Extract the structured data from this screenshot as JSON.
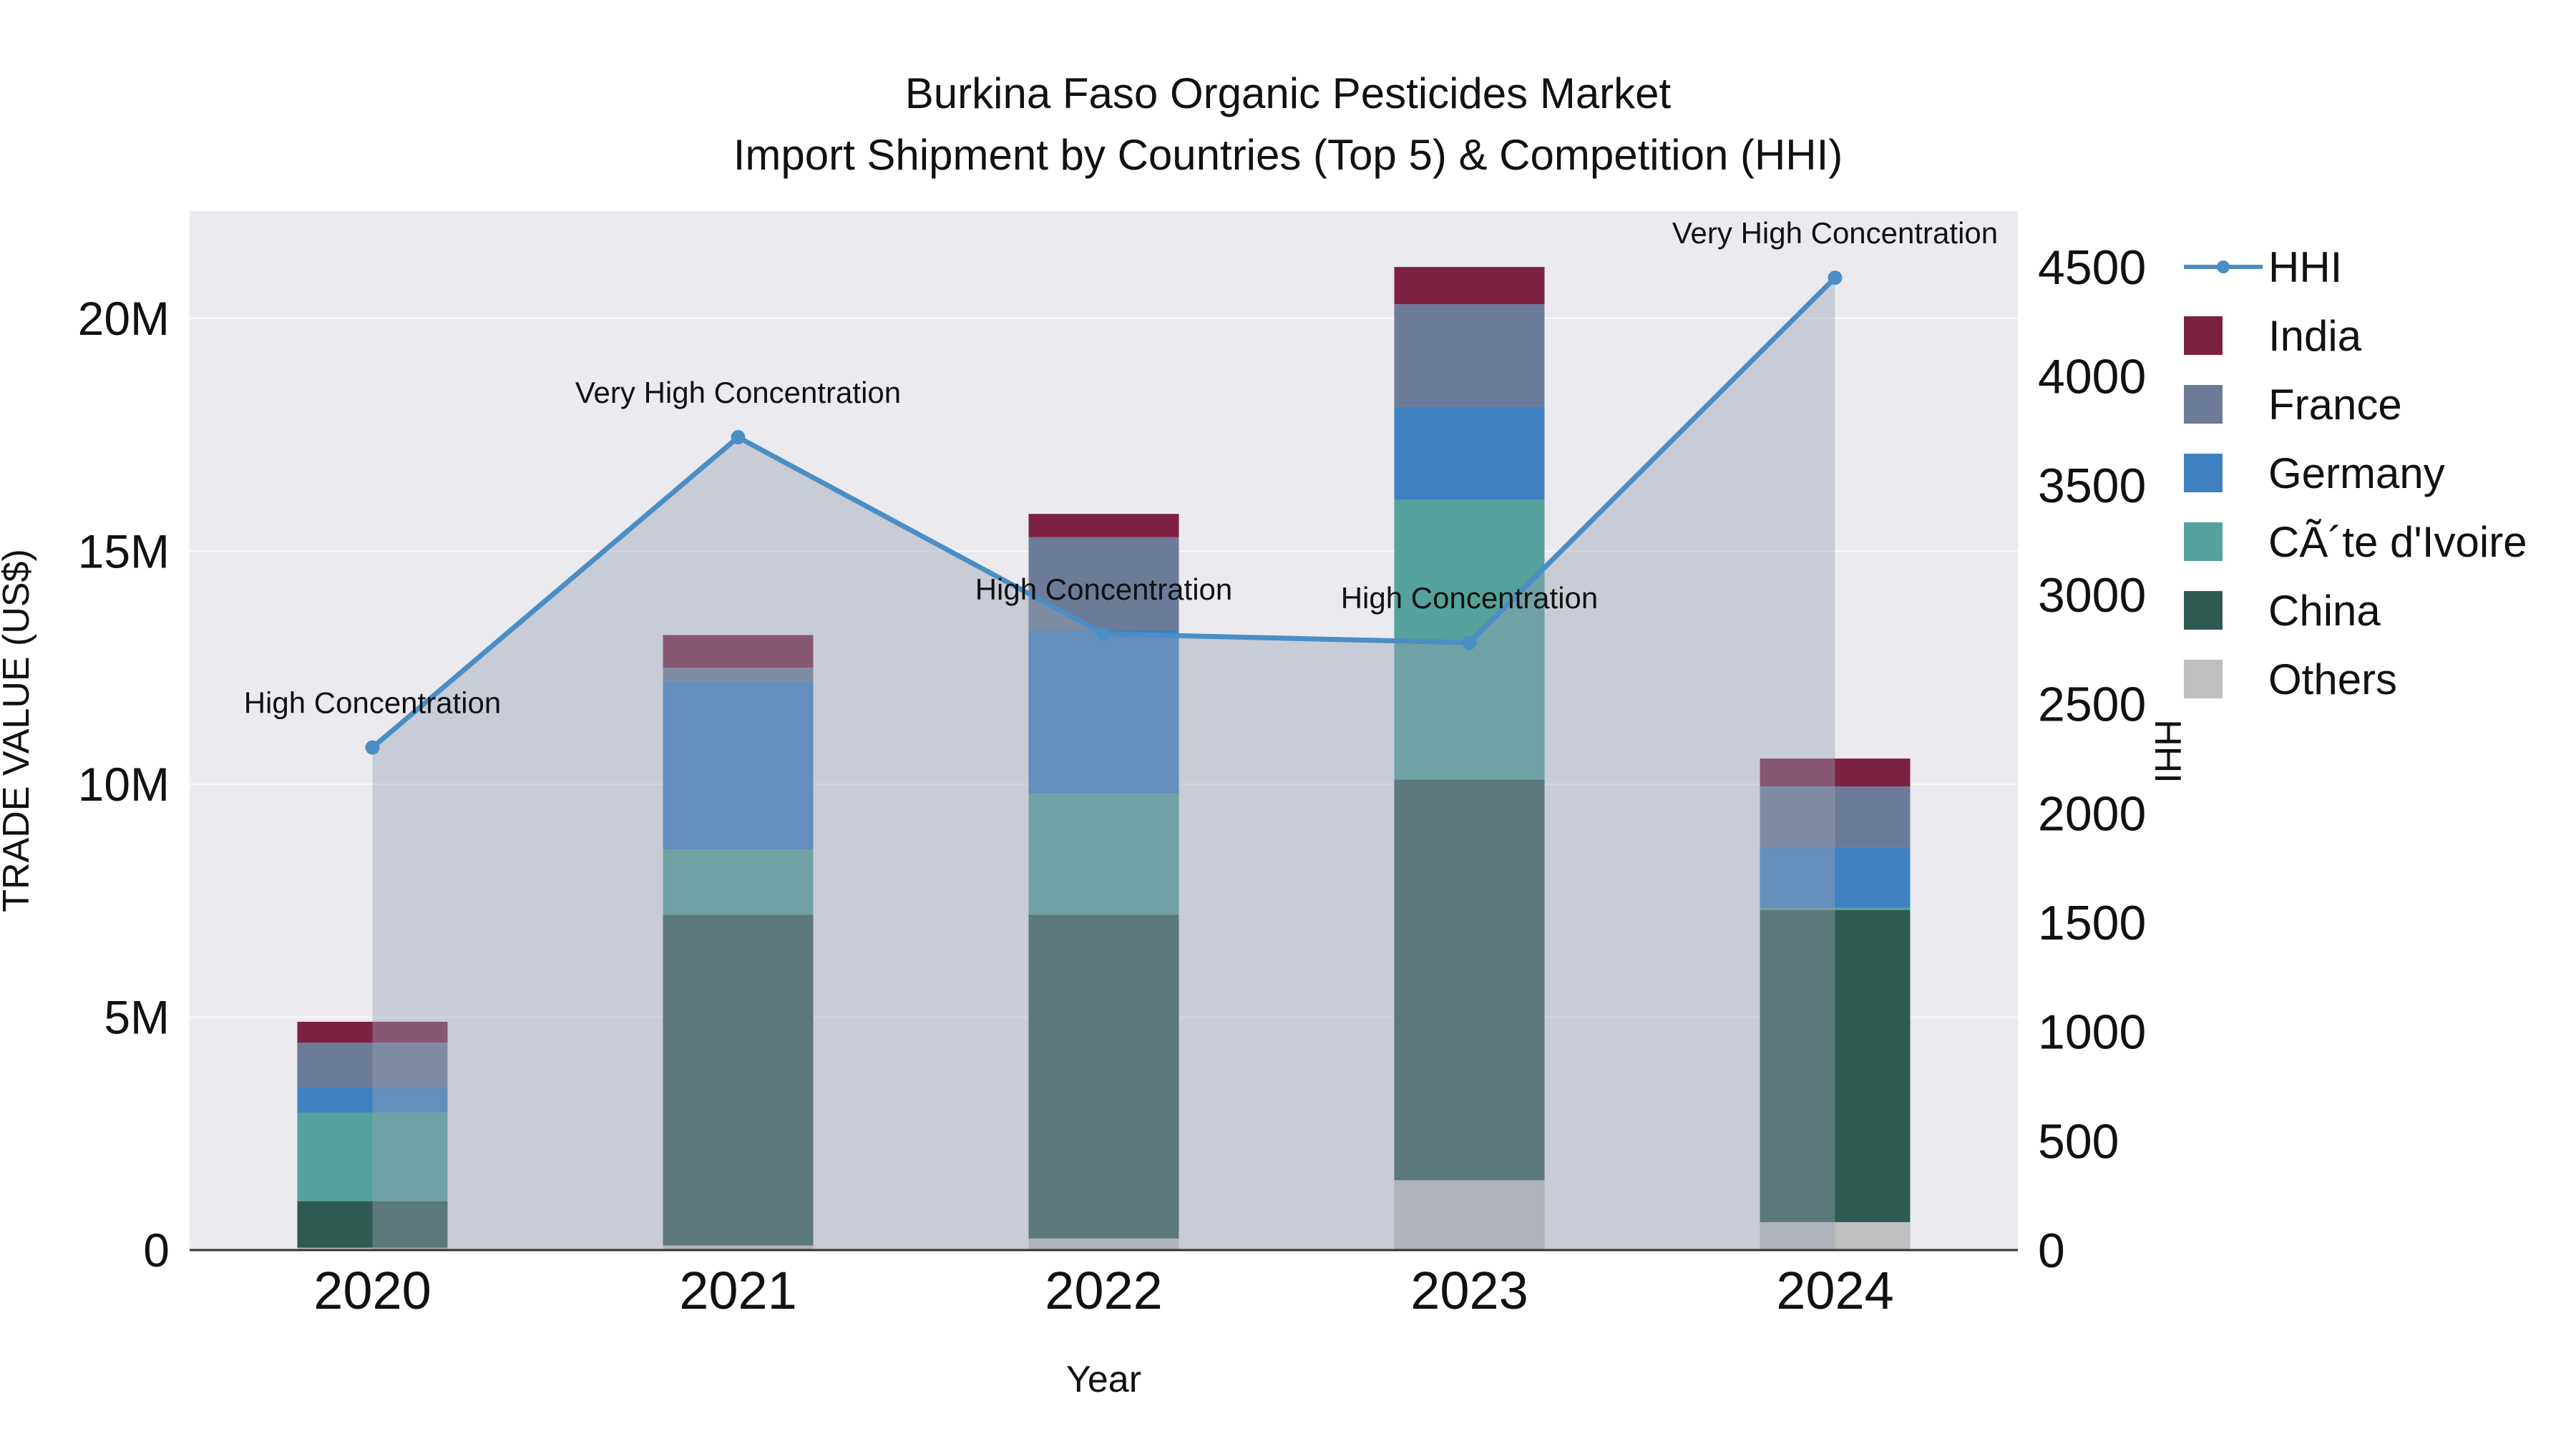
{
  "title": {
    "line1": "Burkina Faso Organic Pesticides Market",
    "line2": "Import Shipment by Countries (Top 5) & Competition (HHI)"
  },
  "chart_data": {
    "type": "combo-stacked-bar-line",
    "categories": [
      "2020",
      "2021",
      "2022",
      "2023",
      "2024"
    ],
    "xlabel": "Year",
    "ylabel_left": "TRADE VALUE (US$)",
    "ylabel_right": "HHI",
    "values_unit": "USD millions",
    "y_left_max_musd": 22.3,
    "y_right_max": 4755,
    "y_left_ticks": {
      "values": [
        0,
        5,
        10,
        15,
        20
      ],
      "labels": [
        "0",
        "5M",
        "10M",
        "15M",
        "20M"
      ]
    },
    "y_right_ticks": [
      0,
      500,
      1000,
      1500,
      2000,
      2500,
      3000,
      3500,
      4000,
      4500
    ],
    "colors": {
      "plot_bg": "#eaeaef",
      "grid": "#fafafa",
      "axis_line": "#333333",
      "text": "#111111"
    },
    "series": [
      {
        "name": "Others",
        "color": "#bfbfbf",
        "values_musd": [
          0.05,
          0.1,
          0.25,
          1.5,
          0.6
        ]
      },
      {
        "name": "China",
        "color": "#2f5a52",
        "values_musd": [
          1.0,
          7.1,
          6.95,
          8.6,
          6.7
        ]
      },
      {
        "name": "CÃ´te d'Ivoire",
        "color": "#54a29b",
        "values_musd": [
          1.9,
          1.4,
          2.6,
          6.0,
          0.05
        ]
      },
      {
        "name": "Germany",
        "color": "#3f80c1",
        "values_musd": [
          0.55,
          3.6,
          3.5,
          2.0,
          1.3
        ]
      },
      {
        "name": "France",
        "color": "#6c7c98",
        "values_musd": [
          0.95,
          0.3,
          2.0,
          2.2,
          1.3
        ]
      },
      {
        "name": "India",
        "color": "#7c2142",
        "values_musd": [
          0.45,
          0.7,
          0.5,
          0.8,
          0.6
        ]
      }
    ],
    "line_series": {
      "name": "HHI",
      "color": "#4b8ec5",
      "area_fill": "rgba(152,162,178,0.42)",
      "values": [
        2300,
        3720,
        2820,
        2780,
        4450
      ]
    },
    "annotations": [
      {
        "category_index": 0,
        "text": "High Concentration"
      },
      {
        "category_index": 1,
        "text": "Very High Concentration"
      },
      {
        "category_index": 2,
        "text": "High Concentration"
      },
      {
        "category_index": 3,
        "text": "High Concentration"
      },
      {
        "category_index": 4,
        "text": "Very High Concentration"
      }
    ]
  },
  "legend": {
    "items": [
      {
        "label": "HHI",
        "type": "line",
        "color": "#4b8ec5"
      },
      {
        "label": "India",
        "type": "square",
        "color": "#7c2142"
      },
      {
        "label": "France",
        "type": "square",
        "color": "#6c7c98"
      },
      {
        "label": "Germany",
        "type": "square",
        "color": "#3f80c1"
      },
      {
        "label": "CÃ´te d'Ivoire",
        "type": "square",
        "color": "#54a29b"
      },
      {
        "label": "China",
        "type": "square",
        "color": "#2f5a52"
      },
      {
        "label": "Others",
        "type": "square",
        "color": "#bfbfbf"
      }
    ]
  }
}
